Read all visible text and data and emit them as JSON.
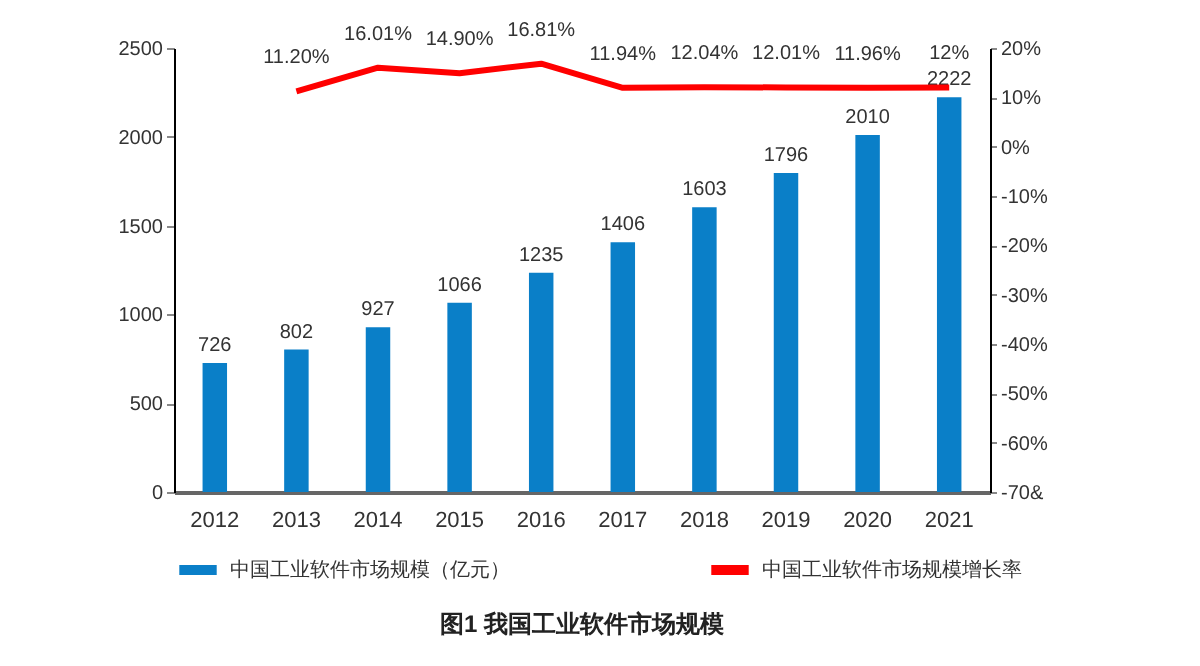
{
  "chart_data": {
    "type": "bar",
    "title": "图1  我国工业软件市场规模",
    "categories": [
      "2012",
      "2013",
      "2014",
      "2015",
      "2016",
      "2017",
      "2018",
      "2019",
      "2020",
      "2021"
    ],
    "series": [
      {
        "name": "中国工业软件市场规模（亿元）",
        "type": "bar",
        "color": "#0a7fc8",
        "values": [
          726,
          802,
          927,
          1066,
          1235,
          1406,
          1603,
          1796,
          2010,
          2222
        ],
        "data_labels": true
      },
      {
        "name": "中国工业软件市场规模增长率",
        "type": "line",
        "axis": "y2",
        "color": "#ff0000",
        "values": [
          null,
          11.2,
          16.01,
          14.9,
          16.81,
          11.94,
          12.04,
          12.01,
          11.96,
          12
        ],
        "value_labels": [
          null,
          "11.20%",
          "16.01%",
          "14.90%",
          "16.81%",
          "11.94%",
          "12.04%",
          "12.01%",
          "11.96%",
          "12%"
        ]
      }
    ],
    "ylim": [
      0,
      2500
    ],
    "yticks": [
      0,
      500,
      1000,
      1500,
      2000,
      2500
    ],
    "y2lim": [
      -70,
      20
    ],
    "y2ticks": [
      {
        "value": -70,
        "label": "-70&"
      },
      {
        "value": -60,
        "label": "-60%"
      },
      {
        "value": -50,
        "label": "-50%"
      },
      {
        "value": -40,
        "label": "-40%"
      },
      {
        "value": -30,
        "label": "-30%"
      },
      {
        "value": -20,
        "label": "-20%"
      },
      {
        "value": -10,
        "label": "-10%"
      },
      {
        "value": 0,
        "label": "0%"
      },
      {
        "value": 10,
        "label": "10%"
      },
      {
        "value": 20,
        "label": "20%"
      }
    ],
    "grid": false,
    "legend": "bottom"
  }
}
